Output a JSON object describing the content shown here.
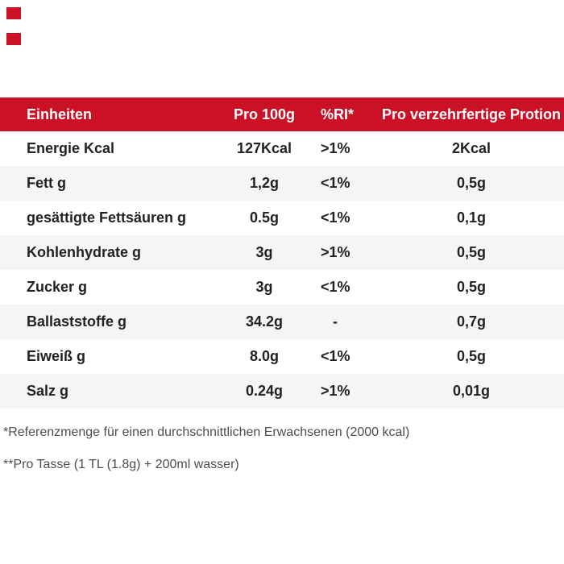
{
  "theme": {
    "accent_red": "#cb1126",
    "stripe": "#f5f5f6",
    "text_dark": "#202225",
    "footnote_gray": "#4e4e4e",
    "header_text": "#ffffff"
  },
  "decor": {
    "squares_color": "#cb1126"
  },
  "table": {
    "header": {
      "col1": "Einheiten",
      "col2": "Pro 100g",
      "col3": "%RI*",
      "col4": "Pro verzehrfertige Protion"
    },
    "rows": [
      {
        "label": "Energie Kcal",
        "per100g": "127Kcal",
        "ri": ">1%",
        "portion": "2Kcal"
      },
      {
        "label": "Fett g",
        "per100g": "1,2g",
        "ri": "<1%",
        "portion": "0,5g"
      },
      {
        "label": "gesättigte Fettsäuren g",
        "per100g": "0.5g",
        "ri": "<1%",
        "portion": "0,1g"
      },
      {
        "label": "Kohlenhydrate g",
        "per100g": "3g",
        "ri": ">1%",
        "portion": "0,5g"
      },
      {
        "label": "Zucker g",
        "per100g": "3g",
        "ri": "<1%",
        "portion": "0,5g"
      },
      {
        "label": "Ballaststoffe g",
        "per100g": "34.2g",
        "ri": "-",
        "portion": "0,7g"
      },
      {
        "label": "Eiweiß g",
        "per100g": "8.0g",
        "ri": "<1%",
        "portion": "0,5g"
      },
      {
        "label": "Salz g",
        "per100g": "0.24g",
        "ri": ">1%",
        "portion": "0,01g"
      }
    ]
  },
  "footnotes": {
    "note1": "*Referenzmenge für einen durchschnittlichen Erwachsenen (2000 kcal)",
    "note2": "**Pro Tasse (1 TL (1.8g) + 200ml wasser)"
  }
}
